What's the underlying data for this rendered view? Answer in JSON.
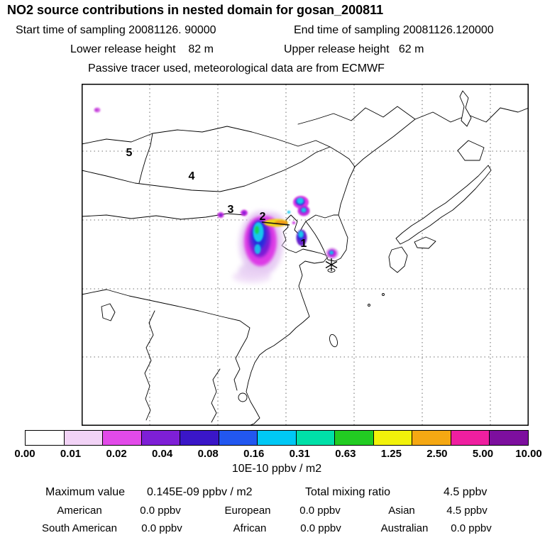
{
  "chart_data": {
    "type": "heatmap",
    "title": "NO2 source contributions in nested domain for gosan_200811",
    "header_lines": {
      "start_time": "Start time of sampling 20081126. 90000",
      "end_time": "End time of sampling 20081126.120000",
      "lower_release": "Lower release height    82 m",
      "upper_release": "Upper release height   62 m",
      "tracer_note": "Passive tracer used, meteorological data are from ECMWF"
    },
    "map_overlay": {
      "region_labels": {
        "r1": "1",
        "r2": "2",
        "r3": "3",
        "r4": "4",
        "r5": "5"
      },
      "marker": "asterisk-station-marker"
    },
    "colorbar": {
      "units_label": "10E-10 ppbv / m2",
      "tick_labels": [
        "0.00",
        "0.01",
        "0.02",
        "0.04",
        "0.08",
        "0.16",
        "0.31",
        "0.63",
        "1.25",
        "2.50",
        "5.00",
        "10.00"
      ],
      "segment_colors": [
        "#ffffff",
        "#f2d3f6",
        "#e24ae9",
        "#7e1fd6",
        "#3a16c8",
        "#2257f0",
        "#00c8f5",
        "#00e0a8",
        "#22cc22",
        "#f2f20a",
        "#f5a813",
        "#ef1fa0",
        "#7d0f9e"
      ]
    },
    "stats": {
      "maximum_value_label": "Maximum value",
      "maximum_value": "0.145E-09 ppbv / m2",
      "total_mixing_ratio_label": "Total mixing ratio",
      "total_mixing_ratio": "4.5 ppbv",
      "contributions": [
        {
          "region": "American",
          "value": "0.0 ppbv"
        },
        {
          "region": "European",
          "value": "0.0 ppbv"
        },
        {
          "region": "Asian",
          "value": "4.5 ppbv"
        },
        {
          "region": "South American",
          "value": "0.0 ppbv"
        },
        {
          "region": "African",
          "value": "0.0 ppbv"
        },
        {
          "region": "Australian",
          "value": "0.0 ppbv"
        }
      ]
    }
  }
}
